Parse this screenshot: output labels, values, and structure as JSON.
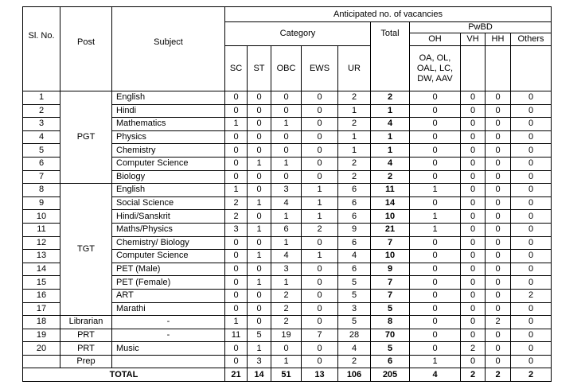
{
  "header": {
    "sl_no": "Sl. No.",
    "post": "Post",
    "subject": "Subject",
    "anticipated": "Anticipated no. of vacancies",
    "category": "Category",
    "total": "Total",
    "pwbd": "PwBD",
    "pwbd_cols": [
      "OH",
      "VH",
      "HH",
      "Others"
    ],
    "category_cols": [
      "SC",
      "ST",
      "OBC",
      "EWS",
      "UR"
    ],
    "oh_note": "OA, OL, OAL, LC, DW, AAV"
  },
  "posts": [
    "PGT",
    "TGT",
    "Librarian",
    "PRT",
    "PRT",
    "Prep"
  ],
  "rows": [
    {
      "sl": 1,
      "subject": "English",
      "values": [
        0,
        0,
        0,
        0,
        2,
        2,
        0,
        0,
        0,
        0
      ]
    },
    {
      "sl": 2,
      "subject": "Hindi",
      "values": [
        0,
        0,
        0,
        0,
        1,
        1,
        0,
        0,
        0,
        0
      ]
    },
    {
      "sl": 3,
      "subject": "Mathematics",
      "values": [
        1,
        0,
        1,
        0,
        2,
        4,
        0,
        0,
        0,
        0
      ]
    },
    {
      "sl": 4,
      "subject": "Physics",
      "values": [
        0,
        0,
        0,
        0,
        1,
        1,
        0,
        0,
        0,
        0
      ]
    },
    {
      "sl": 5,
      "subject": "Chemistry",
      "values": [
        0,
        0,
        0,
        0,
        1,
        1,
        0,
        0,
        0,
        0
      ]
    },
    {
      "sl": 6,
      "subject": "Computer Science",
      "values": [
        0,
        1,
        1,
        0,
        2,
        4,
        0,
        0,
        0,
        0
      ]
    },
    {
      "sl": 7,
      "subject": "Biology",
      "values": [
        0,
        0,
        0,
        0,
        2,
        2,
        0,
        0,
        0,
        0
      ]
    },
    {
      "sl": 8,
      "subject": "English",
      "values": [
        1,
        0,
        3,
        1,
        6,
        11,
        1,
        0,
        0,
        0
      ]
    },
    {
      "sl": 9,
      "subject": "Social Science",
      "values": [
        2,
        1,
        4,
        1,
        6,
        14,
        0,
        0,
        0,
        0
      ]
    },
    {
      "sl": 10,
      "subject": "Hindi/Sanskrit",
      "values": [
        2,
        0,
        1,
        1,
        6,
        10,
        1,
        0,
        0,
        0
      ]
    },
    {
      "sl": 11,
      "subject": "Maths/Physics",
      "values": [
        3,
        1,
        6,
        2,
        9,
        21,
        1,
        0,
        0,
        0
      ]
    },
    {
      "sl": 12,
      "subject": "Chemistry/ Biology",
      "values": [
        0,
        0,
        1,
        0,
        6,
        7,
        0,
        0,
        0,
        0
      ]
    },
    {
      "sl": 13,
      "subject": "Computer Science",
      "values": [
        0,
        1,
        4,
        1,
        4,
        10,
        0,
        0,
        0,
        0
      ]
    },
    {
      "sl": 14,
      "subject": "PET (Male)",
      "values": [
        0,
        0,
        3,
        0,
        6,
        9,
        0,
        0,
        0,
        0
      ]
    },
    {
      "sl": 15,
      "subject": "PET (Female)",
      "values": [
        0,
        1,
        1,
        0,
        5,
        7,
        0,
        0,
        0,
        0
      ]
    },
    {
      "sl": 16,
      "subject": "ART",
      "values": [
        0,
        0,
        2,
        0,
        5,
        7,
        0,
        0,
        0,
        2
      ]
    },
    {
      "sl": 17,
      "subject": "Marathi",
      "values": [
        0,
        0,
        2,
        0,
        3,
        5,
        0,
        0,
        0,
        0
      ]
    },
    {
      "sl": 18,
      "subject": "-",
      "values": [
        1,
        0,
        2,
        0,
        5,
        8,
        0,
        0,
        2,
        0
      ]
    },
    {
      "sl": 19,
      "subject": "-",
      "values": [
        11,
        5,
        19,
        7,
        28,
        70,
        0,
        0,
        0,
        0
      ]
    },
    {
      "sl": 20,
      "subject": "Music",
      "values": [
        0,
        1,
        0,
        0,
        4,
        5,
        0,
        2,
        0,
        0
      ]
    },
    {
      "values": [
        0,
        3,
        1,
        0,
        2,
        6,
        1,
        0,
        0,
        0
      ]
    }
  ],
  "total": {
    "label": "TOTAL",
    "values": [
      21,
      14,
      51,
      13,
      106,
      205,
      4,
      2,
      2,
      2
    ]
  }
}
